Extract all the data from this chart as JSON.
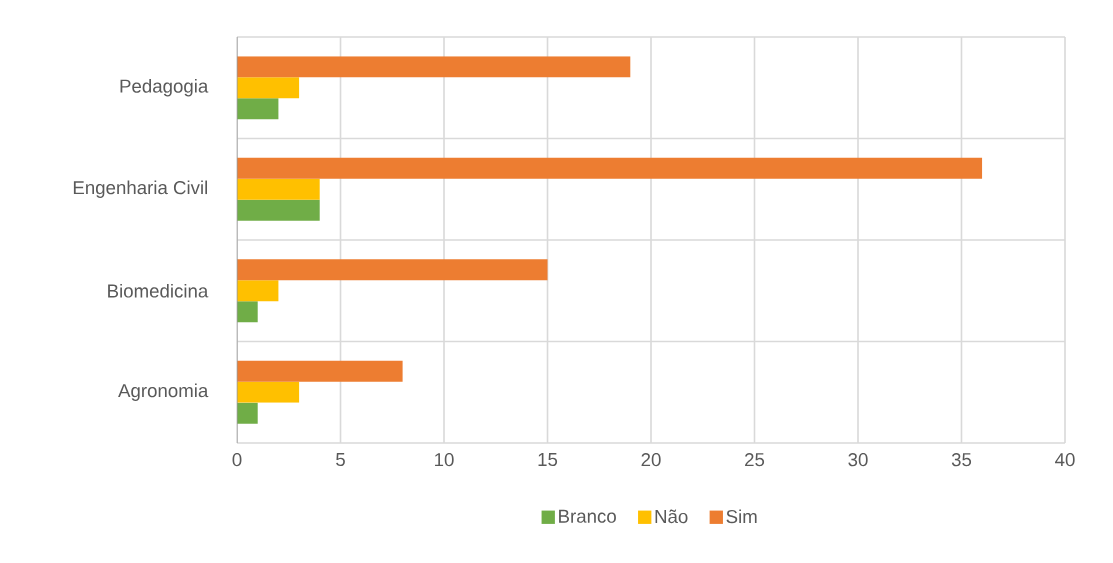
{
  "chart_data": {
    "type": "bar",
    "orientation": "horizontal",
    "categories": [
      "Pedagogia",
      "Engenharia Civil",
      "Biomedicina",
      "Agronomia"
    ],
    "series": [
      {
        "name": "Branco",
        "color": "#70ad47",
        "values": [
          2,
          4,
          1,
          1
        ]
      },
      {
        "name": "Não",
        "color": "#ffc000",
        "values": [
          3,
          4,
          2,
          3
        ]
      },
      {
        "name": "Sim",
        "color": "#ed7d31",
        "values": [
          19,
          36,
          15,
          8
        ]
      }
    ],
    "xlim": [
      0,
      40
    ],
    "xticks": [
      0,
      5,
      10,
      15,
      20,
      25,
      30,
      35,
      40
    ],
    "grid": true,
    "legend": "bottom"
  }
}
